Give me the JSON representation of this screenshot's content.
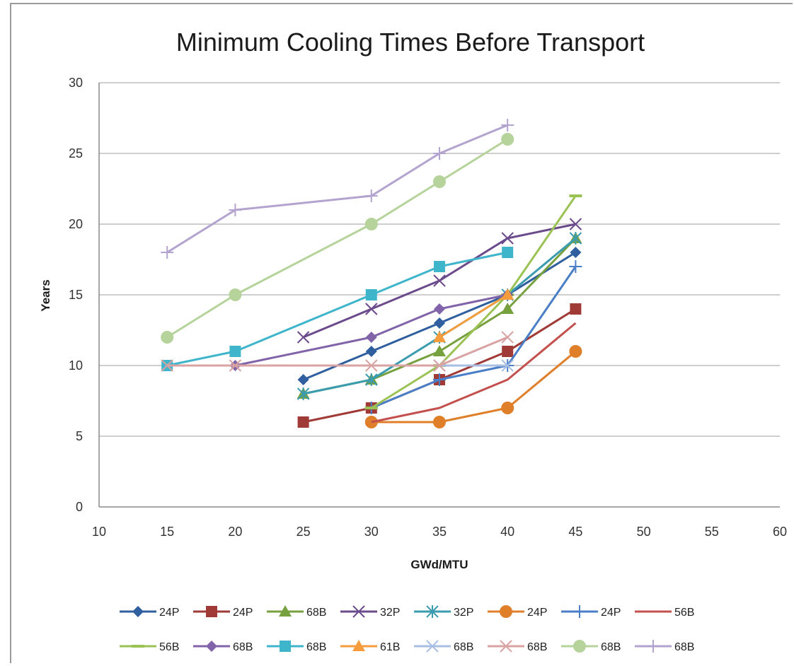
{
  "chart_data": {
    "type": "line",
    "title": "Minimum Cooling Times Before Transport",
    "xlabel": "GWd/MTU",
    "ylabel": "Years",
    "xlim": [
      10,
      60
    ],
    "ylim": [
      0,
      30
    ],
    "xticks": [
      "10",
      "15",
      "20",
      "25",
      "30",
      "35",
      "40",
      "45",
      "50",
      "55",
      "60"
    ],
    "yticks": [
      "0",
      "5",
      "10",
      "15",
      "20",
      "25",
      "30"
    ],
    "grid": "horizontal",
    "legend_position": "bottom",
    "series": [
      {
        "name": "24P",
        "color": "#2f5f9e",
        "marker": "diamond",
        "x": [
          25,
          30,
          35,
          40,
          45
        ],
        "y": [
          9,
          11,
          13,
          15,
          18
        ]
      },
      {
        "name": "24P",
        "color": "#a03a36",
        "marker": "square",
        "x": [
          25,
          30,
          35,
          40,
          45
        ],
        "y": [
          6,
          7,
          9,
          11,
          14
        ]
      },
      {
        "name": "68B",
        "color": "#77a03e",
        "marker": "triangle",
        "x": [
          25,
          30,
          35,
          40,
          45
        ],
        "y": [
          8,
          9,
          11,
          14,
          19
        ]
      },
      {
        "name": "32P",
        "color": "#6b4b8c",
        "marker": "x",
        "x": [
          25,
          30,
          35,
          40,
          45
        ],
        "y": [
          12,
          14,
          16,
          19,
          20
        ]
      },
      {
        "name": "32P",
        "color": "#3b9cb0",
        "marker": "asterisk",
        "x": [
          25,
          30,
          35,
          40,
          45
        ],
        "y": [
          8,
          9,
          12,
          15,
          19
        ]
      },
      {
        "name": "24P",
        "color": "#e07f2a",
        "marker": "circle",
        "x": [
          30,
          35,
          40,
          45
        ],
        "y": [
          6,
          6,
          7,
          11
        ]
      },
      {
        "name": "24P",
        "color": "#4a7fc8",
        "marker": "plus",
        "x": [
          30,
          35,
          40,
          45
        ],
        "y": [
          7,
          9,
          10,
          17
        ]
      },
      {
        "name": "56B",
        "color": "#c4504e",
        "marker": "none",
        "x": [
          30,
          35,
          40,
          45
        ],
        "y": [
          6,
          7,
          9,
          13
        ]
      },
      {
        "name": "56B",
        "color": "#9bc255",
        "marker": "dash",
        "x": [
          30,
          35,
          40,
          45
        ],
        "y": [
          7,
          10,
          15,
          22
        ]
      },
      {
        "name": "68B",
        "color": "#8063a8",
        "marker": "diamond",
        "x": [
          20,
          30,
          35,
          40
        ],
        "y": [
          10,
          12,
          14,
          15
        ]
      },
      {
        "name": "68B",
        "color": "#3fb5cc",
        "marker": "square",
        "x": [
          15,
          20,
          30,
          35,
          40
        ],
        "y": [
          10,
          11,
          15,
          17,
          18
        ]
      },
      {
        "name": "61B",
        "color": "#f59c3c",
        "marker": "triangle",
        "x": [
          35,
          40
        ],
        "y": [
          12,
          15
        ]
      },
      {
        "name": "68B",
        "color": "#a9bee3",
        "marker": "x",
        "x": [
          35,
          40
        ],
        "y": [
          10,
          10
        ]
      },
      {
        "name": "68B",
        "color": "#d8a3a2",
        "marker": "x",
        "x": [
          15,
          20,
          30,
          35,
          40
        ],
        "y": [
          10,
          10,
          10,
          10,
          12
        ]
      },
      {
        "name": "68B",
        "color": "#b5d39a",
        "marker": "circle",
        "x": [
          15,
          20,
          30,
          35,
          40
        ],
        "y": [
          12,
          15,
          20,
          23,
          26
        ]
      },
      {
        "name": "68B",
        "color": "#b3a3cf",
        "marker": "plus",
        "x": [
          15,
          20,
          30,
          35,
          40
        ],
        "y": [
          18,
          21,
          22,
          25,
          27
        ]
      }
    ]
  }
}
